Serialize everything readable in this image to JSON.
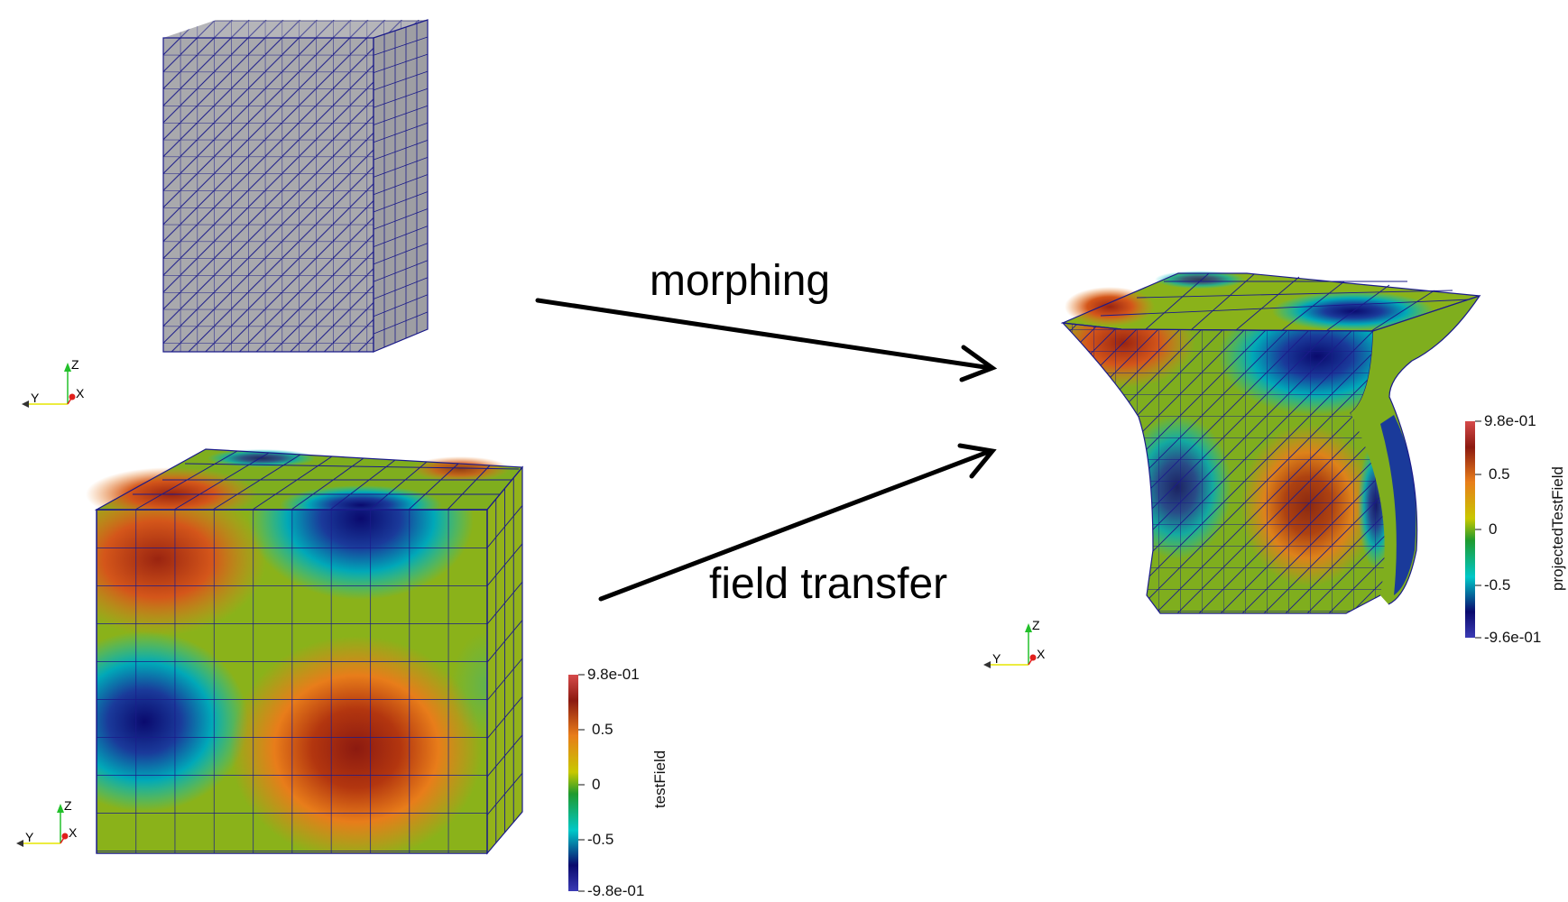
{
  "labels": {
    "morphing": "morphing",
    "field_transfer": "field transfer"
  },
  "colorbar_source": {
    "title": "testField",
    "ticks": [
      "9.8e-01",
      "0.5",
      "0",
      "-0.5",
      "-9.8e-01"
    ]
  },
  "colorbar_target": {
    "title": "projectedTestField",
    "ticks": [
      "9.8e-01",
      "0.5",
      "0",
      "-0.5",
      "-9.6e-01"
    ]
  },
  "axes_labels": {
    "z": "Z",
    "y": "Y",
    "x": "X"
  },
  "colors": {
    "mesh_gray": "#a9a9ad",
    "mesh_edge": "#1a1a8a",
    "arrow": "#000000",
    "axis_z": "#22c02a",
    "axis_y": "#e6e600",
    "axis_x": "#e0201c"
  },
  "colormap": [
    "#3b3bb5",
    "#0a0a6e",
    "#00c8c8",
    "#1f9a2e",
    "#c8c800",
    "#e87d1a",
    "#8c1a10",
    "#d64a4a"
  ]
}
